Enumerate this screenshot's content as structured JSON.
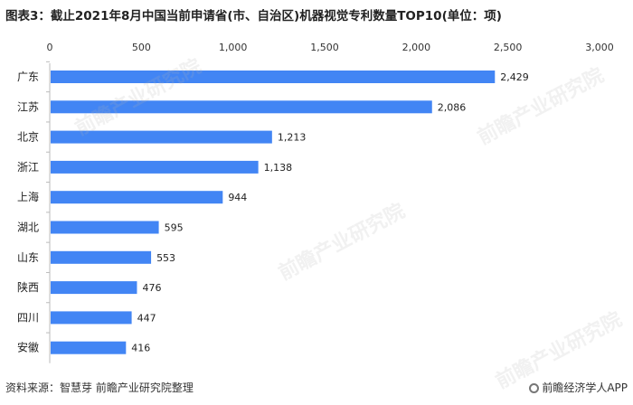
{
  "title": "图表3：截止2021年8月中国当前申请省(市、自治区)机器视觉专利数量TOP10(单位：项)",
  "footer": {
    "source": "资料来源：智慧芽 前瞻产业研究院整理",
    "brand": "前瞻经济学人APP"
  },
  "watermark_text": "前瞻产业研究院",
  "colors": {
    "bar": "#4285f4",
    "axis": "#bbbbbb"
  },
  "chart_data": {
    "type": "bar",
    "orientation": "horizontal",
    "categories": [
      "广东",
      "江苏",
      "北京",
      "浙江",
      "上海",
      "湖北",
      "山东",
      "陕西",
      "四川",
      "安徽"
    ],
    "values": [
      2429,
      2086,
      1213,
      1138,
      944,
      595,
      553,
      476,
      447,
      416
    ],
    "value_labels": [
      "2,429",
      "2,086",
      "1,213",
      "1,138",
      "944",
      "595",
      "553",
      "476",
      "447",
      "416"
    ],
    "xlim": [
      0,
      3000
    ],
    "xticks": [
      0,
      500,
      1000,
      1500,
      2000,
      2500,
      3000
    ],
    "xtick_labels": [
      "0",
      "500",
      "1,000",
      "1,500",
      "2,000",
      "2,500",
      "3,000"
    ],
    "x_axis_position": "top",
    "grid": false,
    "legend": "none"
  }
}
